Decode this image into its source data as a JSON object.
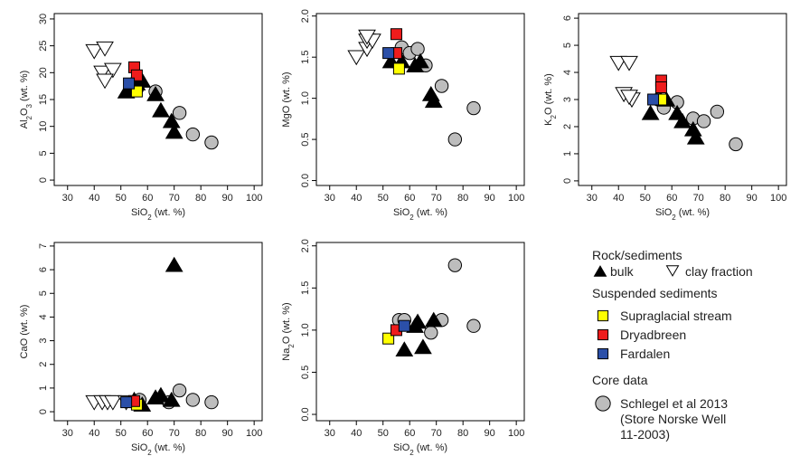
{
  "chart_data": [
    {
      "type": "scatter",
      "xlabel": [
        "SiO",
        "2",
        " (wt. %)"
      ],
      "ylabel": [
        "Al",
        "2",
        "O",
        "3",
        " (wt. %)"
      ],
      "xlim": [
        25,
        103
      ],
      "ylim": [
        -1,
        31
      ],
      "xticks": [
        30,
        40,
        50,
        60,
        70,
        80,
        90,
        100
      ],
      "yticks": [
        0,
        5,
        10,
        15,
        20,
        25,
        30
      ],
      "series": [
        {
          "name": "bulk",
          "marker": "triangle-up",
          "color": "#000000",
          "x": [
            52,
            56,
            58,
            63,
            65,
            69,
            70
          ],
          "y": [
            16.5,
            18,
            18.5,
            16,
            13,
            11,
            9
          ]
        },
        {
          "name": "clay fraction",
          "marker": "triangle-down",
          "color": "#ffffff",
          "x": [
            40,
            44,
            43,
            47,
            44
          ],
          "y": [
            24,
            24.5,
            20,
            20.5,
            18.5
          ]
        },
        {
          "name": "Supraglacial stream",
          "marker": "square",
          "color": "#ffff00",
          "x": [
            56
          ],
          "y": [
            16.5
          ]
        },
        {
          "name": "Dryadbreen",
          "marker": "square",
          "color": "#ee1c1c",
          "x": [
            55,
            56
          ],
          "y": [
            21,
            19.5
          ]
        },
        {
          "name": "Fardalen",
          "marker": "square",
          "color": "#2b4fa8",
          "x": [
            53
          ],
          "y": [
            18
          ]
        },
        {
          "name": [
            "Schlegel et al 2013",
            "(Store Norske Well",
            "11-2003)"
          ],
          "marker": "circle",
          "color": "#bdbdbd",
          "x": [
            55,
            56,
            63,
            72,
            77,
            84
          ],
          "y": [
            18,
            17,
            16.5,
            12.5,
            8.5,
            7
          ]
        }
      ]
    },
    {
      "type": "scatter",
      "xlabel": [
        "SiO",
        "2",
        " (wt. %)"
      ],
      "ylabel": [
        "MgO (wt. %)"
      ],
      "xlim": [
        25,
        103
      ],
      "ylim": [
        -0.06,
        2.03
      ],
      "xticks": [
        30,
        40,
        50,
        60,
        70,
        80,
        90,
        100
      ],
      "yticks": [
        {
          "value": 0,
          "label": "0.0"
        },
        0.5,
        {
          "value": 1,
          "label": "1.0"
        },
        1.5,
        {
          "value": 2,
          "label": "2.0"
        }
      ],
      "series": [
        {
          "name": "bulk",
          "marker": "triangle-up",
          "color": "#000000",
          "x": [
            53,
            57,
            62,
            64,
            68,
            69
          ],
          "y": [
            1.45,
            1.45,
            1.4,
            1.45,
            1.05,
            0.97
          ]
        },
        {
          "name": "clay fraction",
          "marker": "triangle-down",
          "color": "#ffffff",
          "x": [
            40,
            44,
            44,
            46,
            44
          ],
          "y": [
            1.5,
            1.6,
            1.7,
            1.7,
            1.75
          ]
        },
        {
          "name": "Supraglacial stream",
          "marker": "square",
          "color": "#ffff00",
          "x": [
            56
          ],
          "y": [
            1.36
          ]
        },
        {
          "name": "Dryadbreen",
          "marker": "square",
          "color": "#ee1c1c",
          "x": [
            55,
            55
          ],
          "y": [
            1.78,
            1.55
          ]
        },
        {
          "name": "Fardalen",
          "marker": "square",
          "color": "#2b4fa8",
          "x": [
            52
          ],
          "y": [
            1.55
          ]
        },
        {
          "name": [
            "Schlegel et al 2013",
            "(Store Norske Well",
            "11-2003)"
          ],
          "marker": "circle",
          "color": "#bdbdbd",
          "x": [
            57,
            60,
            63,
            66,
            72,
            77,
            84
          ],
          "y": [
            1.62,
            1.55,
            1.6,
            1.4,
            1.15,
            0.5,
            0.88
          ]
        }
      ]
    },
    {
      "type": "scatter",
      "xlabel": [
        "SiO",
        "2",
        " (wt. %)"
      ],
      "ylabel": [
        "K",
        "2",
        "O (wt. %)"
      ],
      "xlim": [
        25,
        103
      ],
      "ylim": [
        -0.17,
        6.17
      ],
      "xticks": [
        30,
        40,
        50,
        60,
        70,
        80,
        90,
        100
      ],
      "yticks": [
        0,
        1,
        2,
        3,
        4,
        5,
        6
      ],
      "series": [
        {
          "name": "bulk",
          "marker": "triangle-up",
          "color": "#000000",
          "x": [
            52,
            58,
            62,
            64,
            68,
            69
          ],
          "y": [
            2.5,
            3,
            2.5,
            2.2,
            1.9,
            1.6
          ]
        },
        {
          "name": "clay fraction",
          "marker": "triangle-down",
          "color": "#ffffff",
          "x": [
            40,
            44,
            42,
            45,
            44
          ],
          "y": [
            4.35,
            4.35,
            3.2,
            3.0,
            3.1
          ]
        },
        {
          "name": "Supraglacial stream",
          "marker": "square",
          "color": "#ffff00",
          "x": [
            56
          ],
          "y": [
            3.0
          ]
        },
        {
          "name": "Dryadbreen",
          "marker": "square",
          "color": "#ee1c1c",
          "x": [
            56,
            56
          ],
          "y": [
            3.7,
            3.45
          ]
        },
        {
          "name": "Fardalen",
          "marker": "square",
          "color": "#2b4fa8",
          "x": [
            53
          ],
          "y": [
            3.0
          ]
        },
        {
          "name": [
            "Schlegel et al 2013",
            "(Store Norske Well",
            "11-2003)"
          ],
          "marker": "circle",
          "color": "#bdbdbd",
          "x": [
            55,
            57,
            62,
            68,
            72,
            77,
            84
          ],
          "y": [
            3,
            2.7,
            2.9,
            2.3,
            2.2,
            2.55,
            1.35
          ]
        }
      ]
    },
    {
      "type": "scatter",
      "xlabel": [
        "SiO",
        "2",
        " (wt. %)"
      ],
      "ylabel": [
        "CaO (wt. %)"
      ],
      "xlim": [
        25,
        103
      ],
      "ylim": [
        -0.38,
        7.15
      ],
      "xticks": [
        30,
        40,
        50,
        60,
        70,
        80,
        90,
        100
      ],
      "yticks": [
        0,
        1,
        2,
        3,
        4,
        5,
        6,
        7
      ],
      "series": [
        {
          "name": "bulk",
          "marker": "triangle-up",
          "color": "#000000",
          "x": [
            55,
            58,
            63,
            65,
            69,
            70
          ],
          "y": [
            0.5,
            0.3,
            0.6,
            0.7,
            0.5,
            6.2
          ]
        },
        {
          "name": "clay fraction",
          "marker": "triangle-down",
          "color": "#ffffff",
          "x": [
            40,
            43,
            45,
            47,
            52
          ],
          "y": [
            0.4,
            0.4,
            0.4,
            0.4,
            0.4
          ]
        },
        {
          "name": "Supraglacial stream",
          "marker": "square",
          "color": "#ffff00",
          "x": [
            56
          ],
          "y": [
            0.3
          ]
        },
        {
          "name": "Dryadbreen",
          "marker": "square",
          "color": "#ee1c1c",
          "x": [
            55
          ],
          "y": [
            0.45
          ]
        },
        {
          "name": "Fardalen",
          "marker": "square",
          "color": "#2b4fa8",
          "x": [
            52
          ],
          "y": [
            0.4
          ]
        },
        {
          "name": [
            "Schlegel et al 2013",
            "(Store Norske Well",
            "11-2003)"
          ],
          "marker": "circle",
          "color": "#bdbdbd",
          "x": [
            57,
            68,
            72,
            77,
            84
          ],
          "y": [
            0.5,
            0.4,
            0.9,
            0.5,
            0.4
          ]
        }
      ]
    },
    {
      "type": "scatter",
      "xlabel": [
        "SiO",
        "2",
        " (wt. %)"
      ],
      "ylabel": [
        "Na",
        "2",
        "O (wt. %)"
      ],
      "xlim": [
        25,
        103
      ],
      "ylim": [
        -0.075,
        2.04
      ],
      "xticks": [
        30,
        40,
        50,
        60,
        70,
        80,
        90,
        100
      ],
      "yticks": [
        {
          "value": 0,
          "label": "0.0"
        },
        0.5,
        {
          "value": 1,
          "label": "1.0"
        },
        1.5,
        {
          "value": 2,
          "label": "2.0"
        }
      ],
      "series": [
        {
          "name": "bulk",
          "marker": "triangle-up",
          "color": "#000000",
          "x": [
            58,
            62,
            63,
            65,
            69
          ],
          "y": [
            0.77,
            1.05,
            1.1,
            0.8,
            1.12
          ]
        },
        {
          "name": "Supraglacial stream",
          "marker": "square",
          "color": "#ffff00",
          "x": [
            52
          ],
          "y": [
            0.9
          ]
        },
        {
          "name": "Dryadbreen",
          "marker": "square",
          "color": "#ee1c1c",
          "x": [
            55
          ],
          "y": [
            1.0
          ]
        },
        {
          "name": "Fardalen",
          "marker": "square",
          "color": "#2b4fa8",
          "x": [
            58
          ],
          "y": [
            1.05
          ]
        },
        {
          "name": [
            "Schlegel et al 2013",
            "(Store Norske Well",
            "11-2003)"
          ],
          "marker": "circle",
          "color": "#bdbdbd",
          "x": [
            56,
            58,
            68,
            72,
            77,
            84
          ],
          "y": [
            1.12,
            1.12,
            0.97,
            1.12,
            1.77,
            1.05
          ]
        }
      ]
    }
  ],
  "legend": {
    "groups": [
      "Rock/sediments",
      "Suspended sediments",
      "Core data"
    ]
  }
}
